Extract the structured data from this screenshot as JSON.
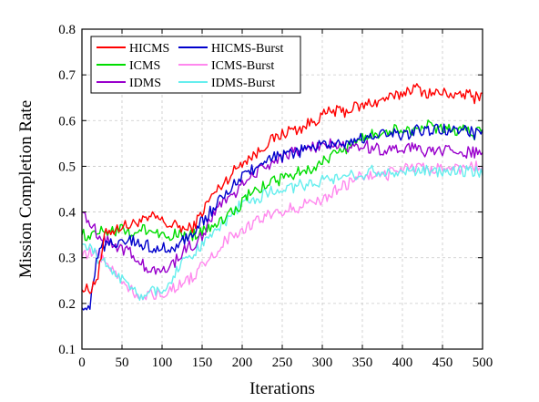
{
  "chart_data": {
    "type": "line",
    "xlabel": "Iterations",
    "ylabel": "Mission Completion Rate",
    "xlim": [
      0,
      500
    ],
    "ylim": [
      0.1,
      0.8
    ],
    "x_ticks": [
      0,
      50,
      100,
      150,
      200,
      250,
      300,
      350,
      400,
      450,
      500
    ],
    "y_ticks": [
      0.1,
      0.2,
      0.3,
      0.4,
      0.5,
      0.6,
      0.7,
      0.8
    ],
    "x_tick_labels": [
      "0",
      "50",
      "100",
      "150",
      "200",
      "250",
      "300",
      "350",
      "400",
      "450",
      "500"
    ],
    "y_tick_labels": [
      "0.1",
      "0.2",
      "0.3",
      "0.4",
      "0.5",
      "0.6",
      "0.7",
      "0.8"
    ],
    "grid": true,
    "legend_position": "top-left",
    "x": [
      0,
      10,
      20,
      30,
      40,
      50,
      60,
      70,
      80,
      90,
      100,
      110,
      120,
      130,
      140,
      150,
      160,
      170,
      180,
      190,
      200,
      210,
      220,
      230,
      240,
      250,
      260,
      270,
      280,
      290,
      300,
      310,
      320,
      330,
      340,
      350,
      360,
      370,
      380,
      390,
      400,
      410,
      420,
      430,
      440,
      450,
      460,
      470,
      480,
      490,
      500
    ],
    "series": [
      {
        "name": "HICMS",
        "color": "#ff0000",
        "values": [
          0.23,
          0.23,
          0.26,
          0.36,
          0.36,
          0.37,
          0.37,
          0.38,
          0.38,
          0.39,
          0.38,
          0.37,
          0.37,
          0.36,
          0.37,
          0.4,
          0.43,
          0.45,
          0.47,
          0.49,
          0.51,
          0.52,
          0.53,
          0.55,
          0.56,
          0.57,
          0.58,
          0.58,
          0.59,
          0.6,
          0.61,
          0.62,
          0.62,
          0.62,
          0.63,
          0.63,
          0.64,
          0.64,
          0.65,
          0.65,
          0.66,
          0.67,
          0.67,
          0.66,
          0.66,
          0.66,
          0.66,
          0.65,
          0.66,
          0.65,
          0.66
        ]
      },
      {
        "name": "ICMS",
        "color": "#00dd00",
        "values": [
          0.35,
          0.35,
          0.36,
          0.36,
          0.36,
          0.36,
          0.35,
          0.36,
          0.36,
          0.36,
          0.35,
          0.35,
          0.35,
          0.35,
          0.35,
          0.36,
          0.37,
          0.38,
          0.39,
          0.4,
          0.42,
          0.44,
          0.45,
          0.46,
          0.47,
          0.47,
          0.48,
          0.49,
          0.49,
          0.5,
          0.51,
          0.52,
          0.53,
          0.54,
          0.55,
          0.56,
          0.57,
          0.57,
          0.58,
          0.58,
          0.58,
          0.58,
          0.58,
          0.59,
          0.58,
          0.58,
          0.58,
          0.58,
          0.58,
          0.57,
          0.58
        ]
      },
      {
        "name": "IDMS",
        "color": "#9900cc",
        "values": [
          0.4,
          0.38,
          0.35,
          0.34,
          0.33,
          0.32,
          0.31,
          0.29,
          0.28,
          0.27,
          0.27,
          0.28,
          0.3,
          0.32,
          0.33,
          0.35,
          0.38,
          0.41,
          0.43,
          0.44,
          0.46,
          0.48,
          0.49,
          0.5,
          0.51,
          0.52,
          0.53,
          0.53,
          0.54,
          0.54,
          0.54,
          0.55,
          0.55,
          0.54,
          0.54,
          0.55,
          0.54,
          0.54,
          0.53,
          0.54,
          0.54,
          0.54,
          0.54,
          0.53,
          0.53,
          0.53,
          0.54,
          0.53,
          0.53,
          0.53,
          0.53
        ]
      },
      {
        "name": "HICMS-Burst",
        "color": "#0000cc",
        "values": [
          0.19,
          0.2,
          0.31,
          0.33,
          0.33,
          0.34,
          0.34,
          0.33,
          0.33,
          0.32,
          0.32,
          0.32,
          0.33,
          0.34,
          0.36,
          0.38,
          0.4,
          0.42,
          0.44,
          0.46,
          0.48,
          0.49,
          0.5,
          0.51,
          0.52,
          0.52,
          0.53,
          0.53,
          0.54,
          0.54,
          0.55,
          0.55,
          0.55,
          0.55,
          0.56,
          0.56,
          0.56,
          0.57,
          0.57,
          0.57,
          0.57,
          0.57,
          0.58,
          0.58,
          0.58,
          0.58,
          0.58,
          0.58,
          0.58,
          0.57,
          0.58
        ]
      },
      {
        "name": "ICMS-Burst",
        "color": "#ff88ee",
        "values": [
          0.3,
          0.31,
          0.31,
          0.29,
          0.27,
          0.25,
          0.23,
          0.22,
          0.22,
          0.22,
          0.22,
          0.23,
          0.24,
          0.25,
          0.26,
          0.28,
          0.3,
          0.32,
          0.34,
          0.35,
          0.36,
          0.37,
          0.38,
          0.39,
          0.4,
          0.4,
          0.41,
          0.41,
          0.42,
          0.42,
          0.43,
          0.44,
          0.45,
          0.46,
          0.47,
          0.48,
          0.48,
          0.48,
          0.48,
          0.49,
          0.49,
          0.5,
          0.5,
          0.49,
          0.49,
          0.5,
          0.5,
          0.49,
          0.5,
          0.5,
          0.5
        ]
      },
      {
        "name": "IDMS-Burst",
        "color": "#66eeee",
        "values": [
          0.33,
          0.32,
          0.3,
          0.29,
          0.27,
          0.25,
          0.23,
          0.22,
          0.22,
          0.23,
          0.23,
          0.25,
          0.28,
          0.3,
          0.31,
          0.33,
          0.34,
          0.36,
          0.38,
          0.4,
          0.42,
          0.43,
          0.43,
          0.44,
          0.45,
          0.45,
          0.45,
          0.46,
          0.46,
          0.46,
          0.47,
          0.47,
          0.48,
          0.48,
          0.48,
          0.48,
          0.49,
          0.49,
          0.49,
          0.49,
          0.49,
          0.49,
          0.49,
          0.49,
          0.49,
          0.49,
          0.49,
          0.49,
          0.49,
          0.49,
          0.48
        ]
      }
    ]
  }
}
